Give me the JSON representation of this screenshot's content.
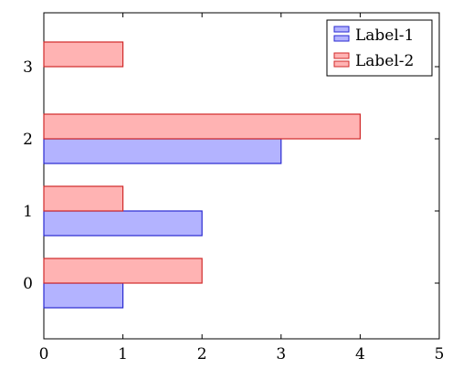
{
  "chart_data": {
    "type": "bar",
    "orientation": "horizontal",
    "categories": [
      "0",
      "1",
      "2",
      "3"
    ],
    "series": [
      {
        "name": "Label-1",
        "values": [
          1,
          2,
          3,
          0
        ],
        "fill": "#b3b3ff",
        "stroke": "#2a2ad0"
      },
      {
        "name": "Label-2",
        "values": [
          2,
          1,
          4,
          1
        ],
        "fill": "#ffb3b3",
        "stroke": "#d02a2a"
      }
    ],
    "xlim": [
      0,
      5
    ],
    "xticks": [
      "0",
      "1",
      "2",
      "3",
      "4",
      "5"
    ],
    "yticks": [
      "0",
      "1",
      "2",
      "3"
    ],
    "title": "",
    "xlabel": "",
    "ylabel": "",
    "grid": false,
    "legend_position": "top-right"
  }
}
